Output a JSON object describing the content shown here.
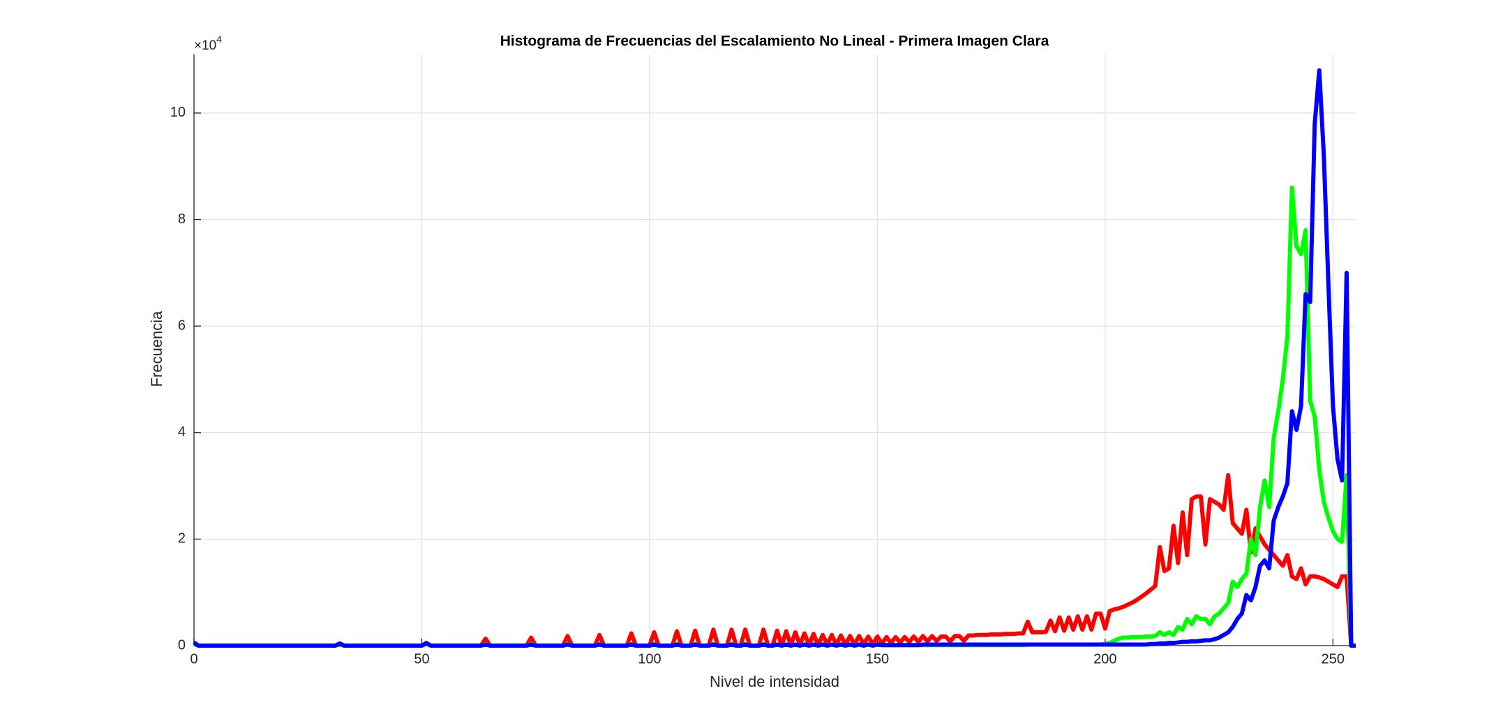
{
  "chart_data": {
    "type": "line",
    "title": "Histograma de Frecuencias del Escalamiento No Lineal - Primera Imagen Clara",
    "x_label": "Nivel de intensidad",
    "y_label": "Frecuencia",
    "y_exponent": {
      "base": "×10",
      "power": "4"
    },
    "grid": true,
    "xlim": [
      0,
      255
    ],
    "ylim": [
      0,
      111000
    ],
    "xticks": [
      0,
      50,
      100,
      150,
      200,
      250
    ],
    "yticks": [
      {
        "value": 0,
        "label": "0"
      },
      {
        "value": 20000,
        "label": "2"
      },
      {
        "value": 40000,
        "label": "4"
      },
      {
        "value": 60000,
        "label": "6"
      },
      {
        "value": 80000,
        "label": "8"
      },
      {
        "value": 100000,
        "label": "10"
      }
    ],
    "x": [
      0,
      1,
      31,
      32,
      33,
      50,
      51,
      52,
      63,
      64,
      65,
      73,
      74,
      75,
      81,
      82,
      83,
      88,
      89,
      90,
      95,
      96,
      97,
      100,
      101,
      102,
      105,
      106,
      107,
      109,
      110,
      111,
      113,
      114,
      115,
      117,
      118,
      119,
      120,
      121,
      122,
      124,
      125,
      126,
      127,
      128,
      129,
      130,
      131,
      132,
      133,
      134,
      135,
      136,
      137,
      138,
      139,
      140,
      141,
      142,
      143,
      144,
      145,
      146,
      147,
      148,
      149,
      150,
      151,
      152,
      153,
      154,
      155,
      156,
      157,
      158,
      159,
      160,
      161,
      162,
      163,
      164,
      165,
      166,
      167,
      168,
      169,
      170,
      171,
      172,
      173,
      174,
      175,
      176,
      177,
      178,
      179,
      180,
      181,
      182,
      183,
      184,
      185,
      186,
      187,
      188,
      189,
      190,
      191,
      192,
      193,
      194,
      195,
      196,
      197,
      198,
      199,
      200,
      201,
      202,
      203,
      204,
      205,
      206,
      207,
      208,
      209,
      210,
      211,
      212,
      213,
      214,
      215,
      216,
      217,
      218,
      219,
      220,
      221,
      222,
      223,
      224,
      225,
      226,
      227,
      228,
      229,
      230,
      231,
      232,
      233,
      234,
      235,
      236,
      237,
      238,
      239,
      240,
      241,
      242,
      243,
      244,
      245,
      246,
      247,
      248,
      249,
      250,
      251,
      252,
      253,
      254,
      255
    ],
    "series": [
      {
        "color": "#ff0000",
        "values": [
          300,
          0,
          0,
          300,
          0,
          0,
          400,
          0,
          0,
          1300,
          0,
          0,
          1500,
          0,
          0,
          1800,
          0,
          0,
          2000,
          0,
          0,
          2300,
          0,
          0,
          2500,
          0,
          0,
          2700,
          0,
          0,
          2800,
          0,
          0,
          3000,
          0,
          0,
          3000,
          0,
          0,
          3000,
          0,
          0,
          3000,
          0,
          0,
          2800,
          0,
          2700,
          100,
          2500,
          100,
          2300,
          100,
          2200,
          100,
          2000,
          200,
          2000,
          200,
          1900,
          200,
          1800,
          300,
          1800,
          300,
          1700,
          300,
          1700,
          400,
          1600,
          500,
          1600,
          600,
          1600,
          700,
          1700,
          700,
          1800,
          800,
          1800,
          900,
          1700,
          1700,
          800,
          1800,
          1800,
          900,
          1900,
          1900,
          2000,
          2000,
          2000,
          2100,
          2100,
          2100,
          2200,
          2200,
          2200,
          2300,
          2300,
          4500,
          2500,
          2500,
          2500,
          2600,
          4700,
          2700,
          5300,
          2800,
          5300,
          3000,
          5500,
          3000,
          5500,
          3000,
          6000,
          6000,
          3200,
          6500,
          6800,
          7000,
          7300,
          7700,
          8100,
          8600,
          9200,
          9800,
          10500,
          11200,
          18500,
          14000,
          14500,
          22500,
          15500,
          25000,
          17000,
          27500,
          28000,
          28000,
          19000,
          27500,
          27000,
          26500,
          25500,
          32000,
          23000,
          22000,
          21000,
          25500,
          17500,
          22000,
          20500,
          19000,
          18000,
          17000,
          16000,
          15000,
          17000,
          13000,
          12500,
          14500,
          11500,
          13000,
          13000,
          12800,
          12500,
          12000,
          11500,
          11000,
          13000,
          13000,
          0,
          0
        ]
      },
      {
        "color": "#00ff00",
        "values": [
          400,
          0,
          0,
          200,
          0,
          0,
          300,
          0,
          0,
          300,
          0,
          0,
          300,
          0,
          0,
          300,
          0,
          0,
          300,
          0,
          0,
          300,
          0,
          0,
          300,
          0,
          0,
          300,
          0,
          0,
          300,
          0,
          0,
          300,
          0,
          0,
          300,
          0,
          0,
          300,
          0,
          0,
          300,
          0,
          0,
          200,
          0,
          200,
          0,
          200,
          0,
          200,
          0,
          200,
          0,
          200,
          0,
          200,
          0,
          200,
          0,
          200,
          0,
          200,
          0,
          200,
          0,
          200,
          100,
          100,
          100,
          100,
          100,
          100,
          100,
          100,
          100,
          100,
          100,
          100,
          100,
          100,
          100,
          100,
          100,
          100,
          100,
          100,
          100,
          100,
          100,
          100,
          100,
          100,
          100,
          100,
          100,
          100,
          100,
          100,
          200,
          200,
          200,
          200,
          200,
          200,
          200,
          200,
          200,
          200,
          200,
          200,
          200,
          200,
          200,
          200,
          200,
          300,
          500,
          900,
          1300,
          1500,
          1500,
          1600,
          1600,
          1600,
          1700,
          1700,
          1800,
          2500,
          2000,
          2500,
          2000,
          3500,
          3000,
          5000,
          4000,
          5500,
          5000,
          5000,
          4000,
          5500,
          6000,
          7000,
          8000,
          12000,
          11000,
          12500,
          13500,
          20000,
          17000,
          26000,
          31000,
          26000,
          39000,
          44000,
          50000,
          58000,
          86000,
          75000,
          73500,
          78000,
          46000,
          43000,
          33000,
          27000,
          24000,
          21500,
          20000,
          19500,
          32000,
          0,
          0
        ]
      },
      {
        "color": "#0000ff",
        "values": [
          600,
          0,
          0,
          400,
          0,
          0,
          500,
          0,
          0,
          200,
          0,
          0,
          200,
          0,
          0,
          200,
          0,
          0,
          200,
          0,
          0,
          200,
          0,
          0,
          200,
          0,
          0,
          200,
          0,
          0,
          200,
          0,
          0,
          200,
          0,
          0,
          200,
          0,
          0,
          200,
          0,
          0,
          200,
          0,
          0,
          200,
          0,
          200,
          0,
          200,
          0,
          200,
          0,
          200,
          0,
          200,
          0,
          200,
          0,
          200,
          0,
          200,
          0,
          200,
          0,
          200,
          0,
          200,
          100,
          100,
          100,
          100,
          100,
          100,
          100,
          100,
          100,
          200,
          200,
          200,
          200,
          200,
          200,
          200,
          200,
          200,
          200,
          200,
          200,
          200,
          200,
          200,
          200,
          200,
          200,
          200,
          200,
          200,
          200,
          200,
          200,
          200,
          200,
          200,
          200,
          200,
          200,
          200,
          200,
          200,
          200,
          200,
          200,
          200,
          200,
          200,
          200,
          200,
          200,
          200,
          200,
          200,
          200,
          200,
          200,
          200,
          200,
          300,
          300,
          400,
          400,
          500,
          500,
          600,
          700,
          700,
          800,
          800,
          900,
          1000,
          1000,
          1200,
          1500,
          2000,
          2500,
          3500,
          5000,
          6000,
          9500,
          8500,
          11000,
          15000,
          16000,
          14500,
          23500,
          26000,
          28000,
          30500,
          44000,
          40500,
          45000,
          66000,
          64500,
          98000,
          108000,
          92000,
          68000,
          45000,
          35000,
          31000,
          70000,
          0,
          0
        ]
      }
    ]
  }
}
